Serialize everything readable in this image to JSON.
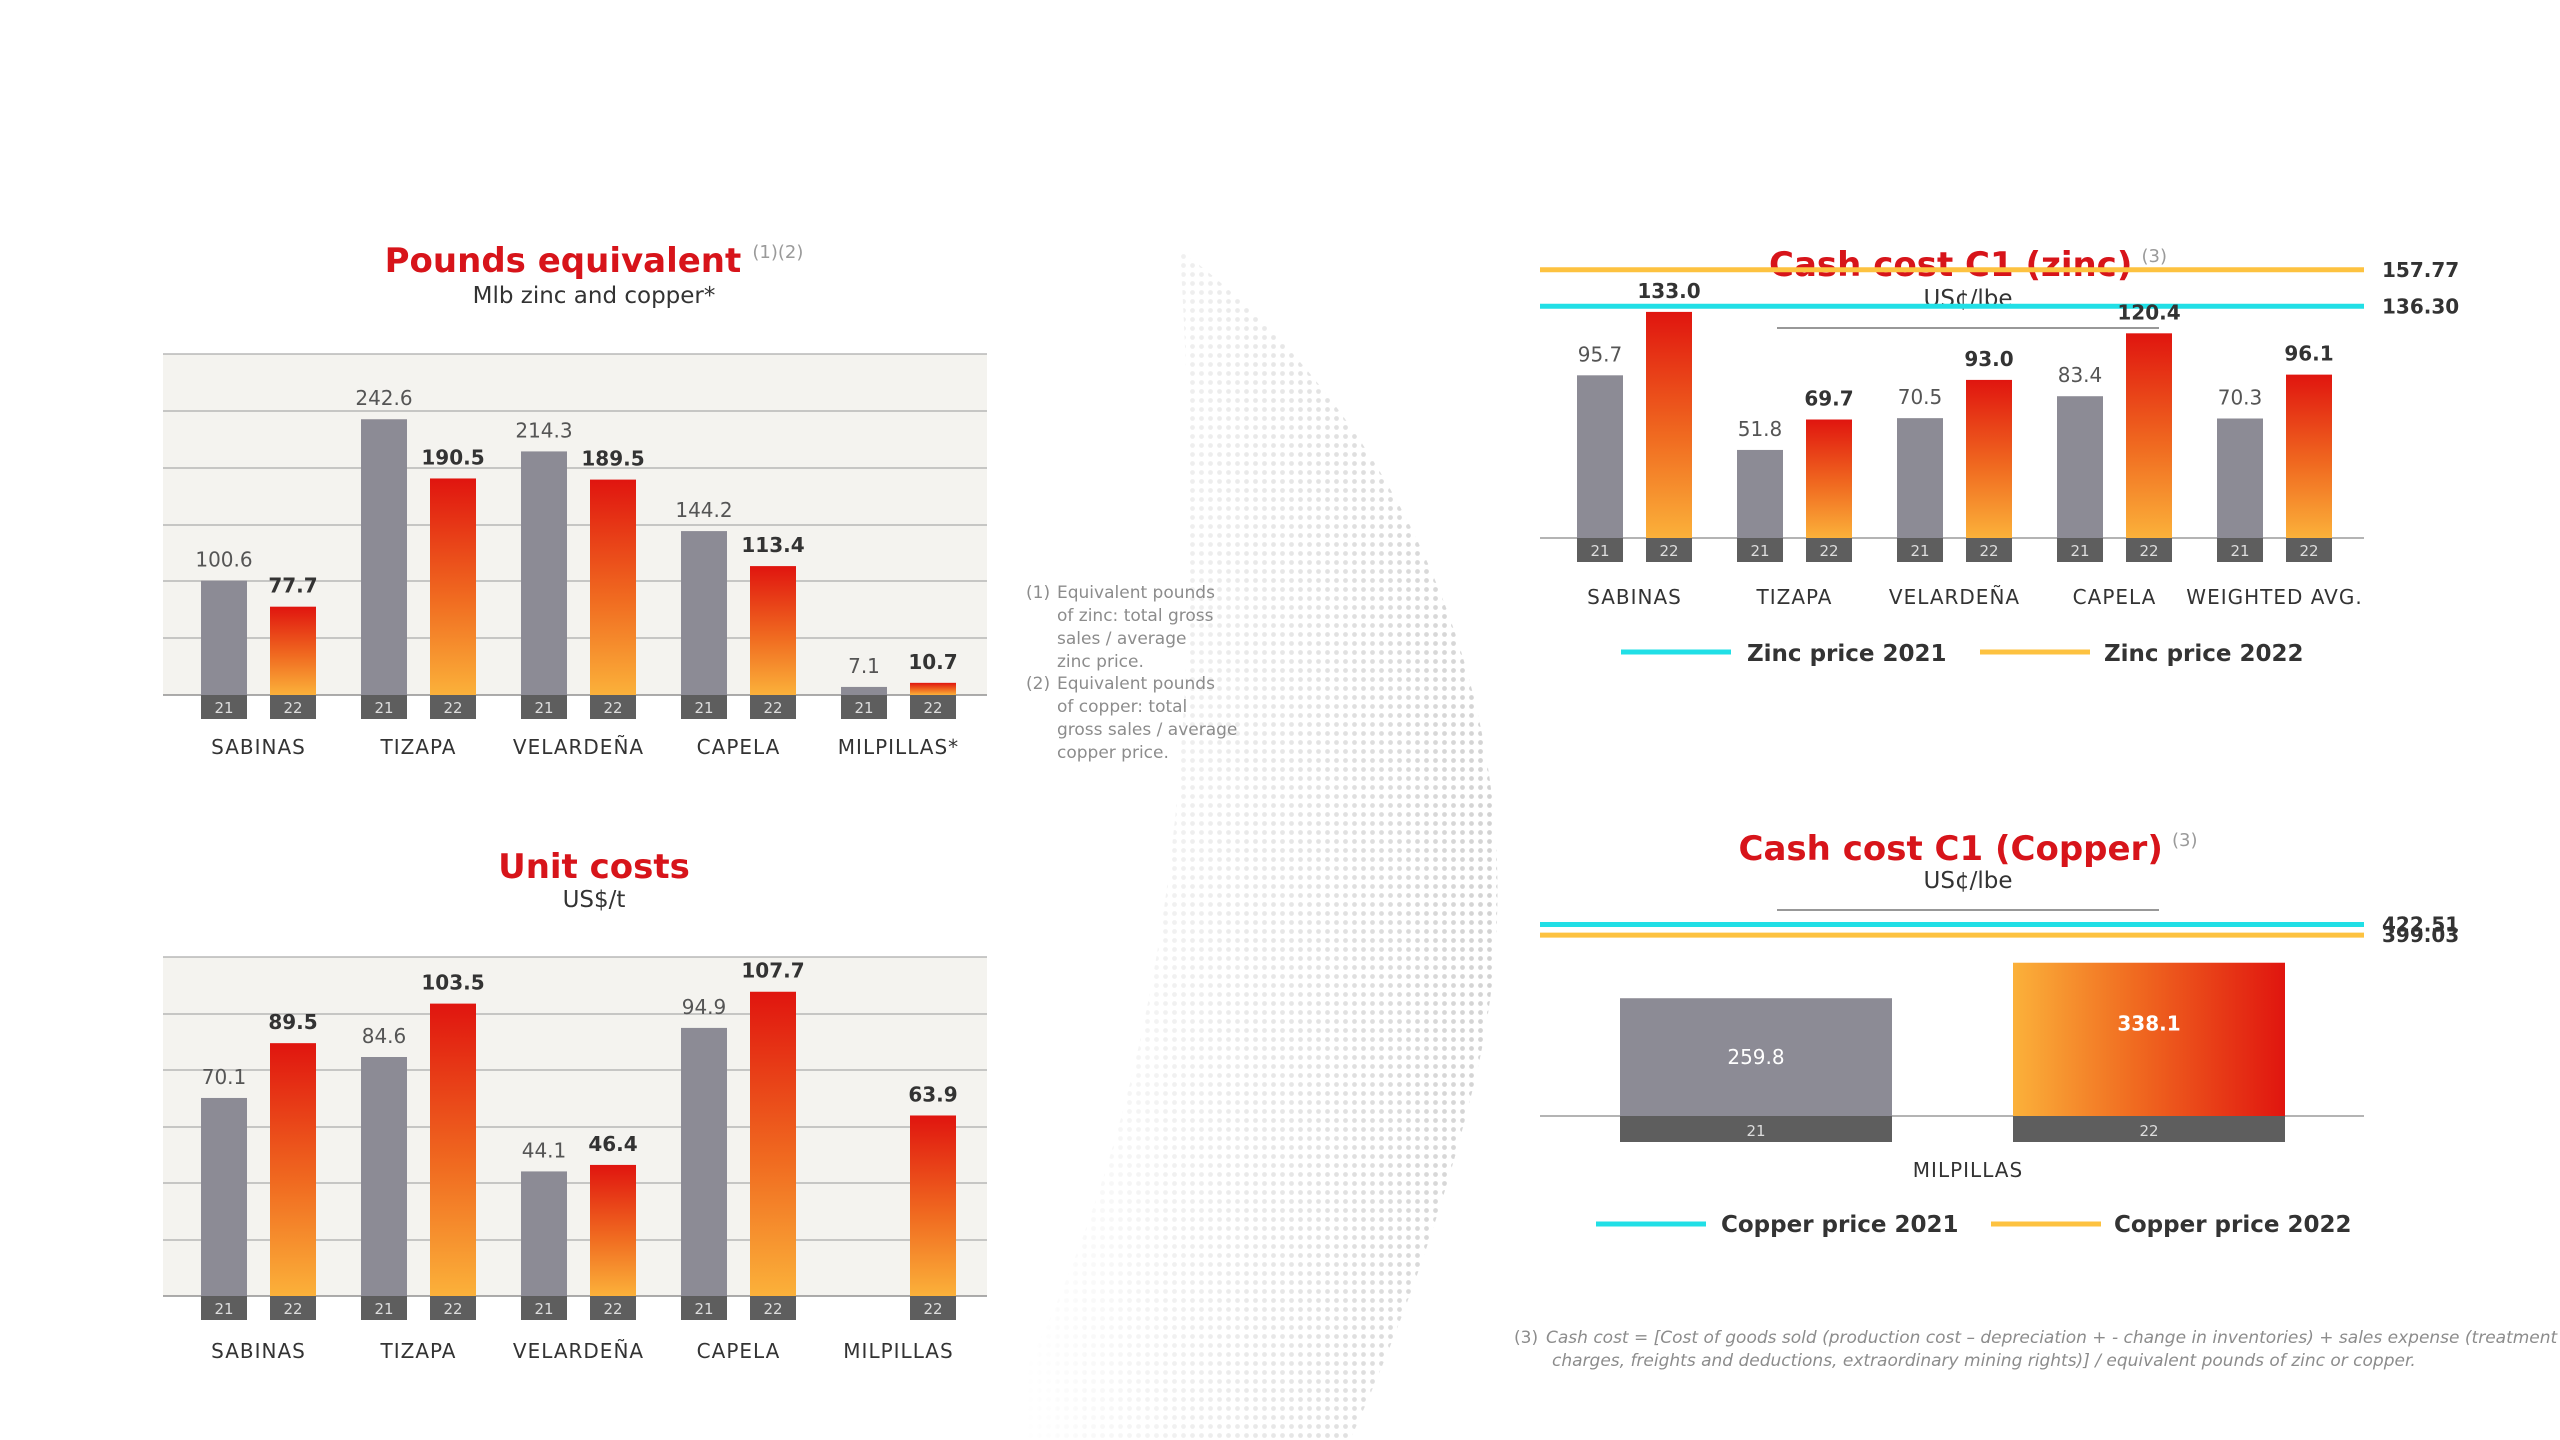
{
  "colors": {
    "title": "#d7141a",
    "bar_2021": "#8c8b95",
    "bar_2022_top": "#e0150f",
    "bar_2022_bottom": "#fbb13a",
    "year_tag": "#5e5e5e",
    "panel_bg": "#f4f3ef",
    "grid": "#aaaaaa",
    "zinc_2021": "#21dfe6",
    "zinc_2022": "#fdc240"
  },
  "notes_12": {
    "n1_mark": "(1)",
    "n1_lines": [
      "Equivalent pounds",
      "of zinc: total gross",
      "sales / average",
      "zinc price."
    ],
    "n2_mark": "(2)",
    "n2_lines": [
      "Equivalent pounds",
      "of copper: total",
      "gross sales / average",
      "copper price."
    ]
  },
  "footnote_3": {
    "mark": "(3)",
    "line1": "Cash cost = [Cost of goods sold (production cost – depreciation + - change in inventories) + sales expense (treatment",
    "line2": "charges, freights and deductions, extraordinary mining rights)] / equivalent pounds of zinc or copper."
  },
  "chart_data": [
    {
      "type": "bar",
      "title": "Pounds equivalent",
      "title_sup": "(1)(2)",
      "subtitle": "Mlb zinc and copper*",
      "year_labels": [
        "21",
        "22"
      ],
      "categories": [
        "SABINAS",
        "TIZAPA",
        "VELARDEÑA",
        "CAPELA",
        "MILPILLAS*"
      ],
      "series": [
        {
          "name": "21",
          "values": [
            100.6,
            242.6,
            214.3,
            144.2,
            7.1
          ]
        },
        {
          "name": "22",
          "values": [
            77.7,
            190.5,
            189.5,
            113.4,
            10.7
          ]
        }
      ],
      "value_labels": [
        [
          "100.6",
          "242.6",
          "214.3",
          "144.2",
          "7.1"
        ],
        [
          "77.7",
          "190.5",
          "189.5",
          "113.4",
          "10.7"
        ]
      ],
      "ylim": [
        0,
        300
      ],
      "grid": true
    },
    {
      "type": "bar",
      "title": "Unit costs",
      "subtitle": "US$/t",
      "year_labels": [
        "21",
        "22"
      ],
      "categories": [
        "SABINAS",
        "TIZAPA",
        "VELARDEÑA",
        "CAPELA",
        "MILPILLAS"
      ],
      "series": [
        {
          "name": "21",
          "values": [
            70.1,
            84.6,
            44.1,
            94.9,
            null
          ]
        },
        {
          "name": "22",
          "values": [
            89.5,
            103.5,
            46.4,
            107.7,
            63.9
          ]
        }
      ],
      "value_labels": [
        [
          "70.1",
          "84.6",
          "44.1",
          "94.9",
          ""
        ],
        [
          "89.5",
          "103.5",
          "46.4",
          "107.7",
          "63.9"
        ]
      ],
      "ylim": [
        0,
        120
      ],
      "grid": true
    },
    {
      "type": "bar",
      "title": "Cash cost C1 (zinc)",
      "title_sup": "(3)",
      "subtitle": "US¢/lbe",
      "year_labels": [
        "21",
        "22"
      ],
      "categories": [
        "SABINAS",
        "TIZAPA",
        "VELARDEÑA",
        "CAPELA",
        "WEIGHTED AVG."
      ],
      "series": [
        {
          "name": "21",
          "values": [
            95.7,
            51.8,
            70.5,
            83.4,
            70.3
          ]
        },
        {
          "name": "22",
          "values": [
            133.0,
            69.7,
            93.0,
            120.4,
            96.1
          ]
        }
      ],
      "value_labels": [
        [
          "95.7",
          "51.8",
          "70.5",
          "83.4",
          "70.3"
        ],
        [
          "133.0",
          "69.7",
          "93.0",
          "120.4",
          "96.1"
        ]
      ],
      "reference_lines": [
        {
          "name": "Zinc price 2021",
          "value": 136.3,
          "label": "136.30"
        },
        {
          "name": "Zinc price 2022",
          "value": 157.77,
          "label": "157.77"
        }
      ],
      "ylim": [
        0,
        170
      ],
      "legend": "bottom"
    },
    {
      "type": "bar",
      "title": "Cash cost C1 (Copper)",
      "title_sup": "(3)",
      "subtitle": "US¢/lbe",
      "year_labels": [
        "21",
        "22"
      ],
      "categories": [
        "MILPILLAS"
      ],
      "series": [
        {
          "name": "21",
          "values": [
            259.8
          ]
        },
        {
          "name": "22",
          "values": [
            338.1
          ]
        }
      ],
      "value_labels": [
        [
          "259.8"
        ],
        [
          "338.1"
        ]
      ],
      "reference_lines": [
        {
          "name": "Copper price 2021",
          "value": 422.51,
          "label": "422.51"
        },
        {
          "name": "Copper price 2022",
          "value": 399.03,
          "label": "399.03"
        }
      ],
      "ylim": [
        0,
        450
      ],
      "legend": "bottom"
    }
  ]
}
